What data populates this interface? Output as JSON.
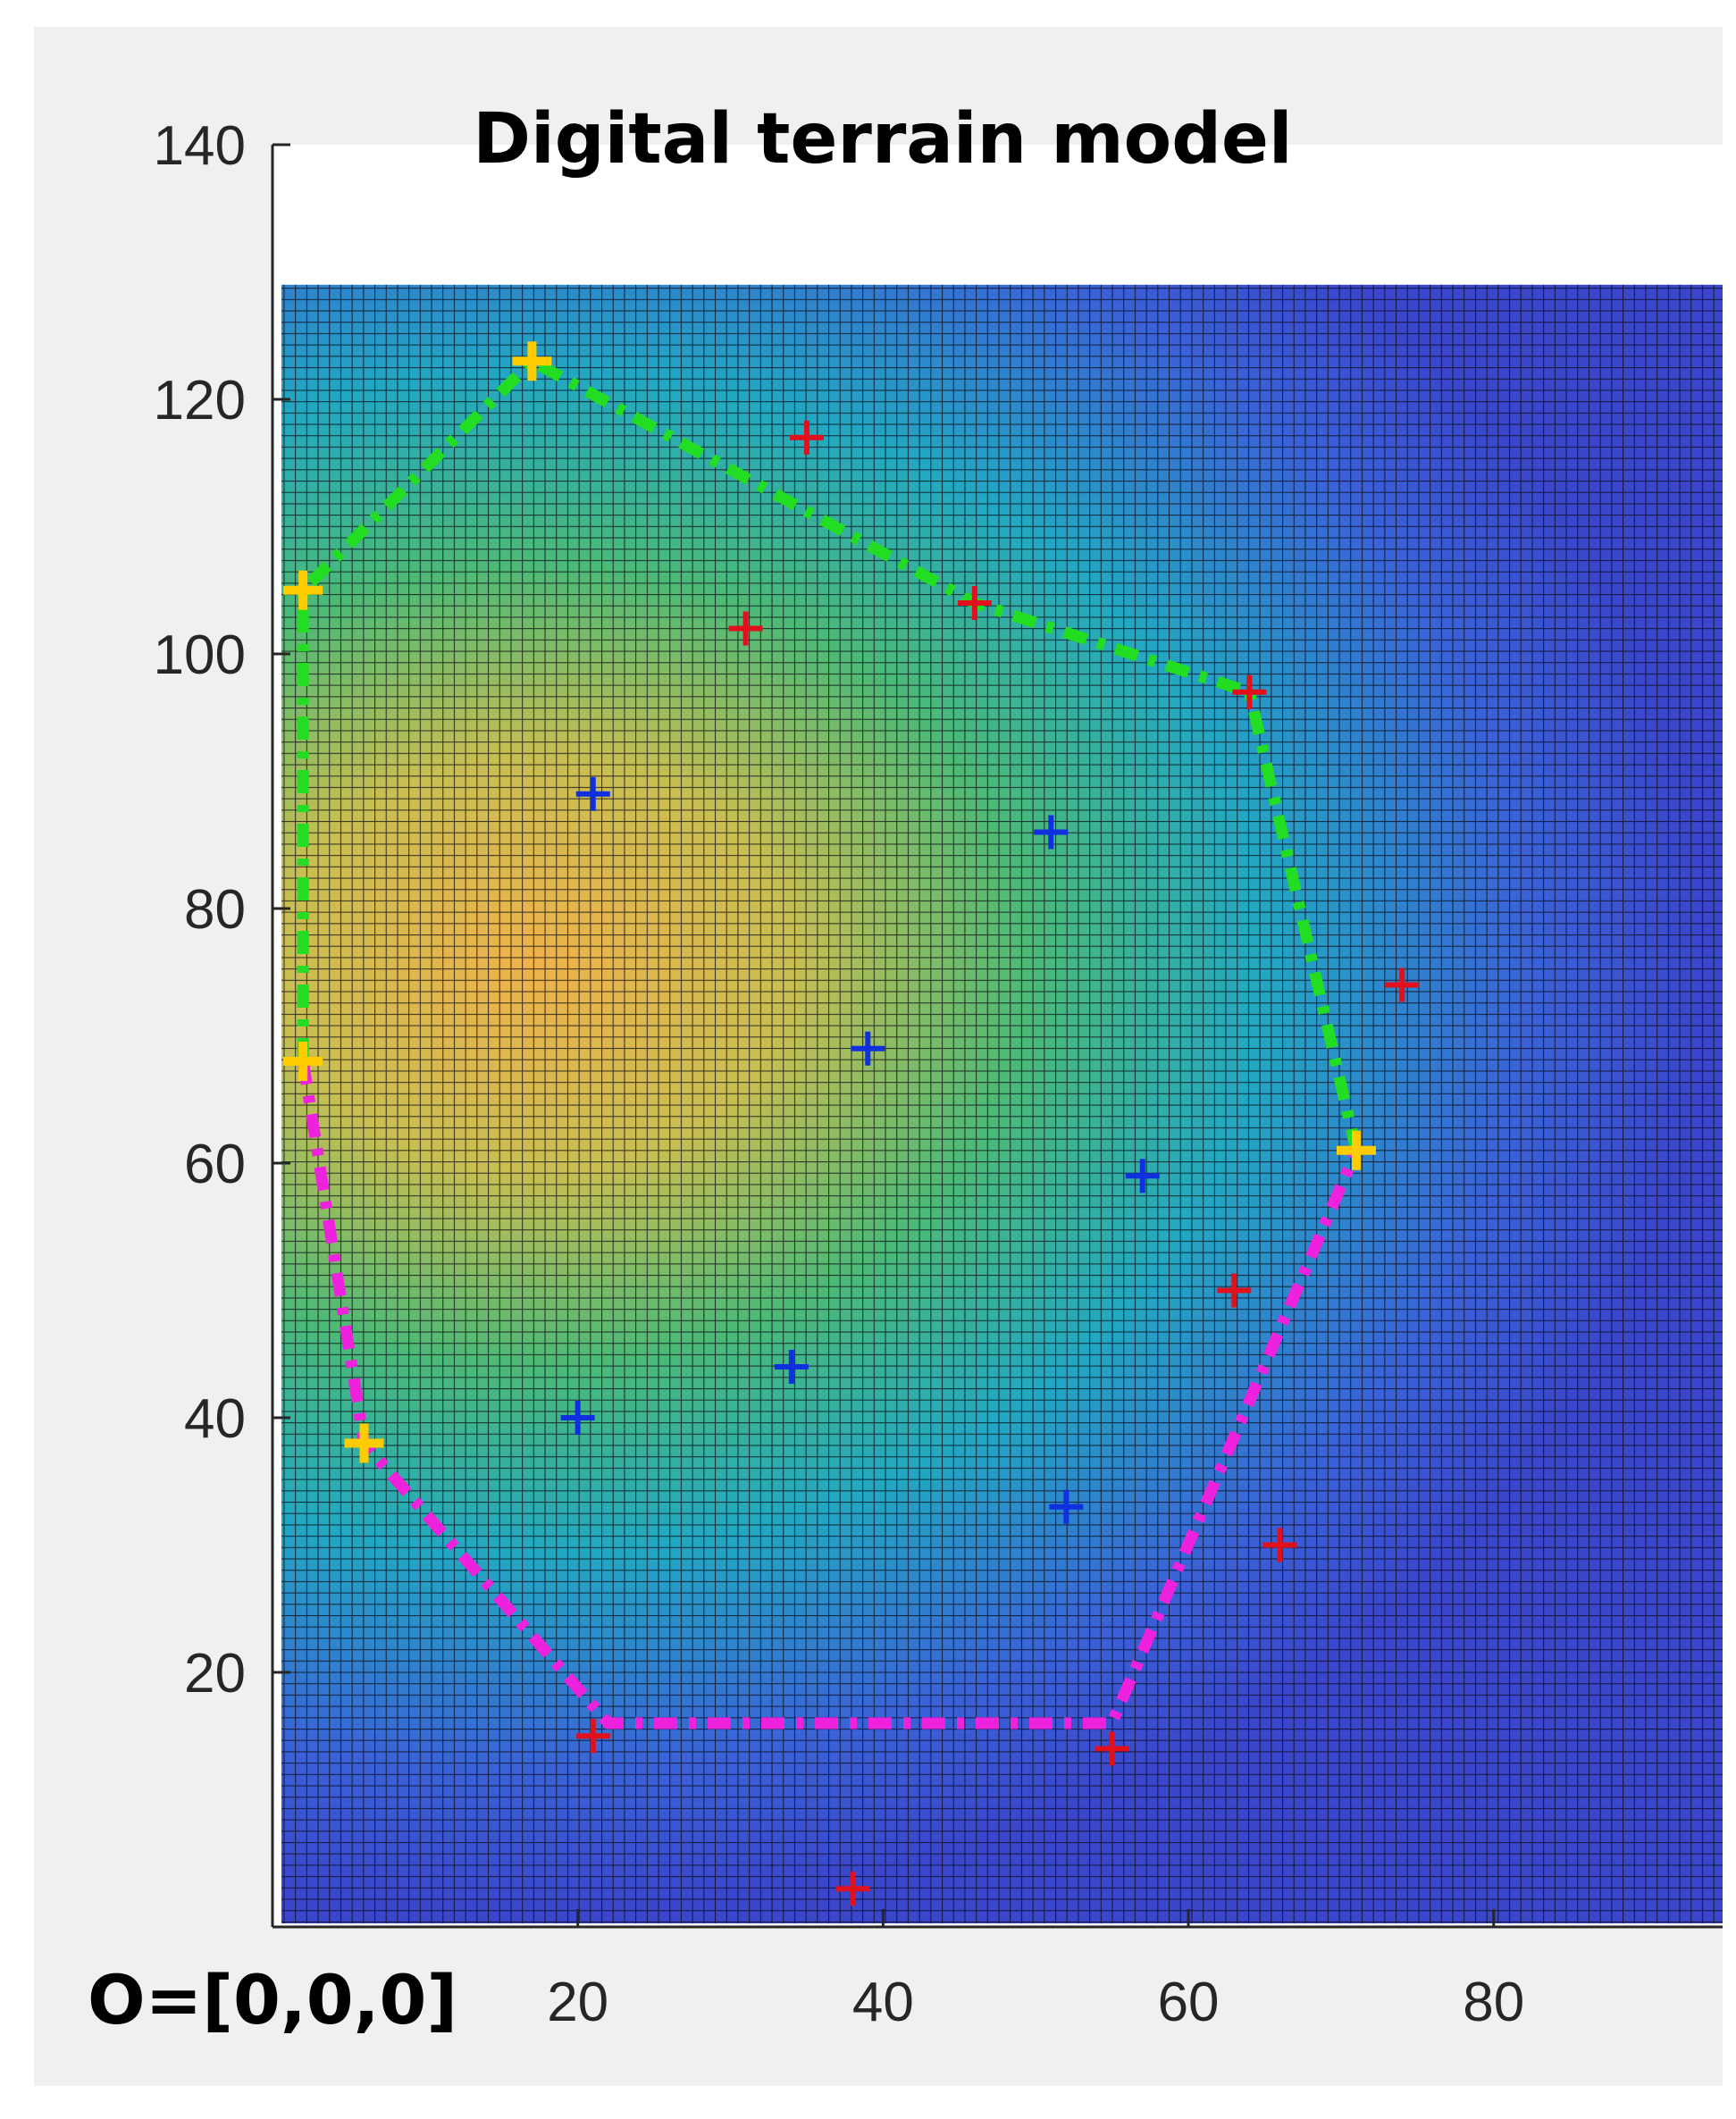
{
  "chart_data": {
    "type": "scatter",
    "title": "Digital terrain model",
    "xlabel": "",
    "ylabel": "",
    "xlim": [
      0,
      95
    ],
    "ylim": [
      0,
      140
    ],
    "x_ticks": [
      20,
      40,
      60,
      80
    ],
    "y_ticks": [
      20,
      40,
      60,
      80,
      100,
      120,
      140
    ],
    "origin_annotation": "O=[0,0,0]",
    "grid": false,
    "surface": {
      "type": "heatmap",
      "x_range": [
        0,
        95
      ],
      "y_range": [
        0,
        129
      ],
      "colormap": "parula",
      "peak": [
        20,
        70
      ],
      "colors": {
        "low": "#3c50d8",
        "mid_low": "#21a0c8",
        "mid": "#3cb878",
        "mid_high": "#c8c050",
        "high": "#f0a848"
      }
    },
    "series": [
      {
        "marker": "+",
        "color": "#e0101c",
        "points": [
          [
            35,
            117
          ],
          [
            31,
            102
          ],
          [
            46,
            104
          ],
          [
            64,
            97
          ],
          [
            74,
            74
          ],
          [
            63,
            50
          ],
          [
            66,
            30
          ],
          [
            55,
            14
          ],
          [
            38,
            3
          ],
          [
            21,
            15
          ]
        ]
      },
      {
        "marker": "+",
        "color": "#1030e0",
        "points": [
          [
            21,
            89
          ],
          [
            51,
            86
          ],
          [
            39,
            69
          ],
          [
            57,
            59
          ],
          [
            34,
            44
          ],
          [
            20,
            40
          ],
          [
            52,
            33
          ]
        ]
      },
      {
        "marker": "+",
        "color": "#ffcc00",
        "points": [
          [
            17,
            123
          ],
          [
            2,
            105
          ],
          [
            2,
            68
          ],
          [
            6,
            38
          ],
          [
            71,
            61
          ]
        ]
      }
    ],
    "boundaries": [
      {
        "color": "#22dd22",
        "style": "dash-dot",
        "points": [
          [
            2,
            68
          ],
          [
            2,
            105
          ],
          [
            17,
            123
          ],
          [
            46,
            104
          ],
          [
            64,
            97
          ],
          [
            71,
            61
          ]
        ]
      },
      {
        "color": "#ee22dd",
        "style": "dash-dot",
        "points": [
          [
            2,
            68
          ],
          [
            6,
            38
          ],
          [
            22,
            16
          ],
          [
            55,
            16
          ],
          [
            71,
            61
          ]
        ]
      }
    ]
  }
}
